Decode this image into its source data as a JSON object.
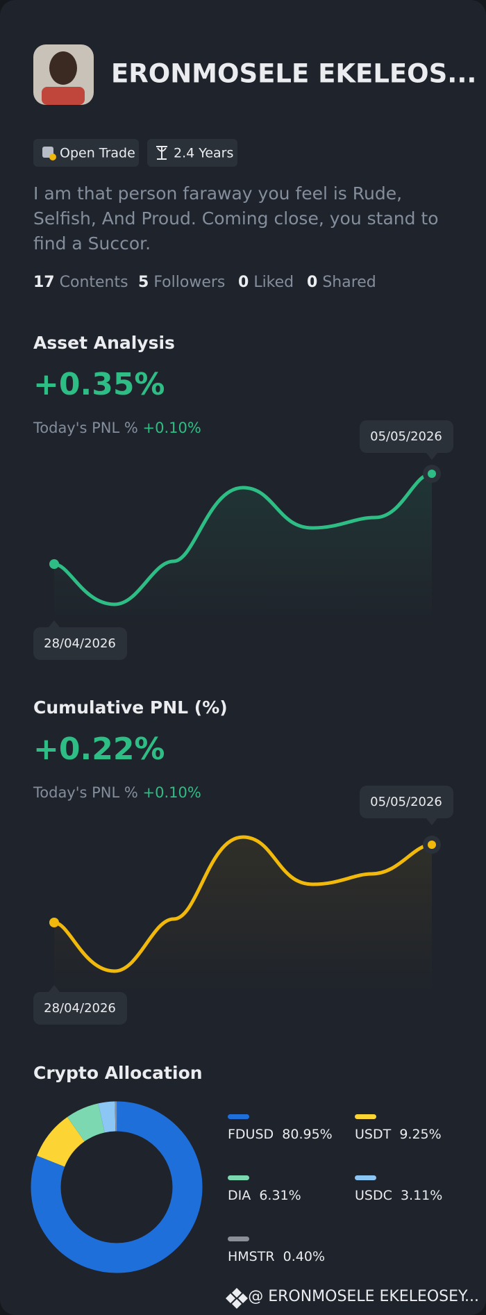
{
  "profile": {
    "name": "ERONMOSELE EKELEOS...",
    "tags": [
      "Open Trade",
      "2.4 Years"
    ],
    "bio": [
      "I am that person faraway you feel is Rude,",
      "Selfish, And Proud. Coming close, you stand to",
      "find a Succor."
    ],
    "stats": [
      {
        "value": 17,
        "label": "Contents"
      },
      {
        "value": 5,
        "label": "Followers"
      },
      {
        "value": 0,
        "label": "Liked"
      },
      {
        "value": 0,
        "label": "Shared"
      }
    ]
  },
  "asset_analysis": {
    "title": "Asset Analysis",
    "value": "+0.35%",
    "pnl_label": "Today's PNL %",
    "pnl_value": "+0.10%",
    "start_date": "28/04/2026",
    "end_date": "05/05/2026"
  },
  "cumulative_pnl": {
    "title": "Cumulative PNL (%)",
    "value": "+0.22%",
    "pnl_label": "Today's PNL %",
    "pnl_value": "+0.10%",
    "start_date": "28/04/2026",
    "end_date": "05/05/2026"
  },
  "chart_data": {
    "type": "pie",
    "title": "Crypto Allocation",
    "categories": [
      "FDUSD",
      "USDT",
      "DIA",
      "USDC",
      "HMSTR"
    ],
    "values": [
      80.95,
      9.25,
      6.31,
      3.11,
      0.4
    ],
    "value_labels": [
      "80.95%",
      "9.25%",
      "6.31%",
      "3.11%",
      "0.40%"
    ],
    "colors": [
      "#1f6fdb",
      "#fcd535",
      "#7bd8b0",
      "#8cc6f5",
      "#8a8f98"
    ]
  },
  "footer": "@ ERONMOSELE EKELEOSEY..."
}
